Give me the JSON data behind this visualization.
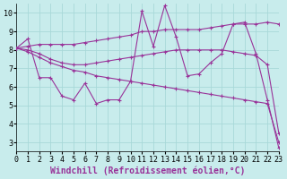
{
  "xlabel": "Windchill (Refroidissement éolien,°C)",
  "background_color": "#c8ecec",
  "grid_color": "#a8d8d8",
  "line_color": "#993399",
  "xlim": [
    0,
    23
  ],
  "ylim": [
    2.5,
    10.5
  ],
  "xticks": [
    0,
    1,
    2,
    3,
    4,
    5,
    6,
    7,
    8,
    9,
    10,
    11,
    12,
    13,
    14,
    15,
    16,
    17,
    18,
    19,
    20,
    21,
    22,
    23
  ],
  "yticks": [
    3,
    4,
    5,
    6,
    7,
    8,
    9,
    10
  ],
  "line1_x": [
    0,
    1,
    2,
    3,
    4,
    5,
    6,
    7,
    8,
    9,
    10,
    11,
    12,
    13,
    14,
    15,
    16,
    17,
    18,
    19,
    20,
    21,
    22,
    23
  ],
  "line1_y": [
    8.1,
    8.6,
    6.5,
    6.5,
    5.5,
    5.3,
    6.2,
    5.1,
    5.3,
    5.3,
    6.3,
    10.1,
    8.2,
    10.4,
    8.7,
    6.6,
    6.7,
    7.3,
    7.8,
    9.4,
    9.5,
    7.8,
    5.3,
    2.7
  ],
  "line2_x": [
    0,
    1,
    2,
    3,
    4,
    5,
    6,
    7,
    8,
    9,
    10,
    11,
    12,
    13,
    14,
    15,
    16,
    17,
    18,
    19,
    20,
    21,
    22,
    23
  ],
  "line2_y": [
    8.1,
    8.2,
    8.3,
    8.3,
    8.3,
    8.3,
    8.4,
    8.5,
    8.6,
    8.7,
    8.8,
    9.0,
    9.0,
    9.1,
    9.1,
    9.1,
    9.1,
    9.2,
    9.3,
    9.4,
    9.4,
    9.4,
    9.5,
    9.4
  ],
  "line3_x": [
    0,
    1,
    2,
    3,
    4,
    5,
    6,
    7,
    8,
    9,
    10,
    11,
    12,
    13,
    14,
    15,
    16,
    17,
    18,
    19,
    20,
    21,
    22,
    23
  ],
  "line3_y": [
    8.1,
    8.0,
    7.8,
    7.5,
    7.3,
    7.2,
    7.2,
    7.3,
    7.4,
    7.5,
    7.6,
    7.7,
    7.8,
    7.9,
    8.0,
    8.0,
    8.0,
    8.0,
    8.0,
    7.9,
    7.8,
    7.7,
    7.2,
    3.5
  ],
  "line4_x": [
    0,
    1,
    2,
    3,
    4,
    5,
    6,
    7,
    8,
    9,
    10,
    11,
    12,
    13,
    14,
    15,
    16,
    17,
    18,
    19,
    20,
    21,
    22,
    23
  ],
  "line4_y": [
    8.1,
    7.9,
    7.6,
    7.3,
    7.1,
    6.9,
    6.8,
    6.6,
    6.5,
    6.4,
    6.3,
    6.2,
    6.1,
    6.0,
    5.9,
    5.8,
    5.7,
    5.6,
    5.5,
    5.4,
    5.3,
    5.2,
    5.1,
    3.0
  ],
  "tick_fontsize": 6,
  "xlabel_fontsize": 7
}
